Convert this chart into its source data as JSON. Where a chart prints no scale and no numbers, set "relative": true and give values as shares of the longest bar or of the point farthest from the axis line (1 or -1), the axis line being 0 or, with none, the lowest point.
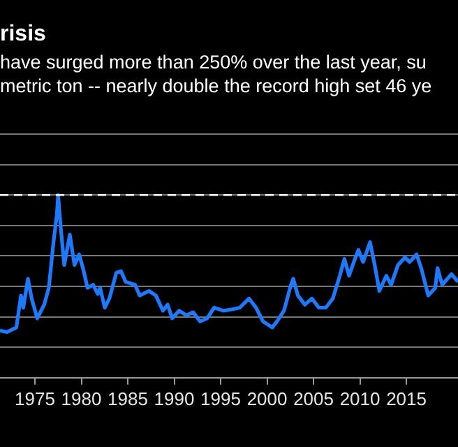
{
  "chart_data": {
    "type": "line",
    "title": "risis",
    "subtitle": "have surged more than 250% over the last year, su\nmetric ton -- nearly double the record high set 46 ye",
    "relative": true,
    "grid": "y",
    "legend": false,
    "marker": "none",
    "line_style": "solid",
    "xlim": [
      1971.24,
      2020.56
    ],
    "xticks": [
      1975,
      1980,
      1985,
      1990,
      1995,
      2000,
      2005,
      2010,
      2015
    ],
    "ref_lines": [
      {
        "axis": "y",
        "value": 1,
        "color": "#ffffff",
        "line_style": "dashed"
      }
    ],
    "series": [
      {
        "color": "#1a7bff",
        "x": [
          1971.24,
          1972.0,
          1973.0,
          1973.5,
          1973.75,
          1974.25,
          1974.65,
          1975.25,
          1976.0,
          1976.5,
          1977.0,
          1977.36,
          1977.5,
          1977.76,
          1978.16,
          1978.76,
          1979.26,
          1979.76,
          1980.26,
          1980.66,
          1981.27,
          1981.77,
          1982.02,
          1982.52,
          1983.02,
          1983.77,
          1984.27,
          1984.77,
          1985.78,
          1986.28,
          1987.28,
          1988.03,
          1988.78,
          1989.29,
          1989.79,
          1990.54,
          1991.29,
          1992.04,
          1992.79,
          1993.55,
          1994.3,
          1995.3,
          1996.3,
          1997.06,
          1998.06,
          1998.81,
          1999.56,
          2000.56,
          2001.07,
          2001.82,
          2002.57,
          2002.82,
          2003.32,
          2004.07,
          2004.82,
          2005.58,
          2006.33,
          2007.08,
          2007.83,
          2008.33,
          2008.83,
          2009.34,
          2009.84,
          2010.34,
          2011.09,
          2011.59,
          2012.09,
          2012.84,
          2013.35,
          2014.1,
          2014.85,
          2015.35,
          2016.1,
          2016.6,
          2017.36,
          2018.11,
          2018.36,
          2018.86,
          2019.86,
          2020.56
        ],
        "values": [
          0.11,
          0.1,
          0.13,
          0.34,
          0.26,
          0.45,
          0.32,
          0.19,
          0.28,
          0.39,
          0.69,
          0.87,
          1.0,
          0.8,
          0.54,
          0.74,
          0.54,
          0.61,
          0.5,
          0.39,
          0.41,
          0.35,
          0.39,
          0.26,
          0.32,
          0.49,
          0.5,
          0.43,
          0.41,
          0.34,
          0.37,
          0.34,
          0.24,
          0.28,
          0.19,
          0.24,
          0.21,
          0.23,
          0.17,
          0.19,
          0.26,
          0.24,
          0.25,
          0.26,
          0.32,
          0.26,
          0.17,
          0.13,
          0.17,
          0.24,
          0.41,
          0.45,
          0.34,
          0.28,
          0.32,
          0.26,
          0.26,
          0.32,
          0.47,
          0.58,
          0.47,
          0.56,
          0.64,
          0.56,
          0.69,
          0.54,
          0.37,
          0.47,
          0.41,
          0.54,
          0.59,
          0.56,
          0.61,
          0.52,
          0.34,
          0.39,
          0.52,
          0.41,
          0.48,
          0.43
        ]
      }
    ]
  }
}
